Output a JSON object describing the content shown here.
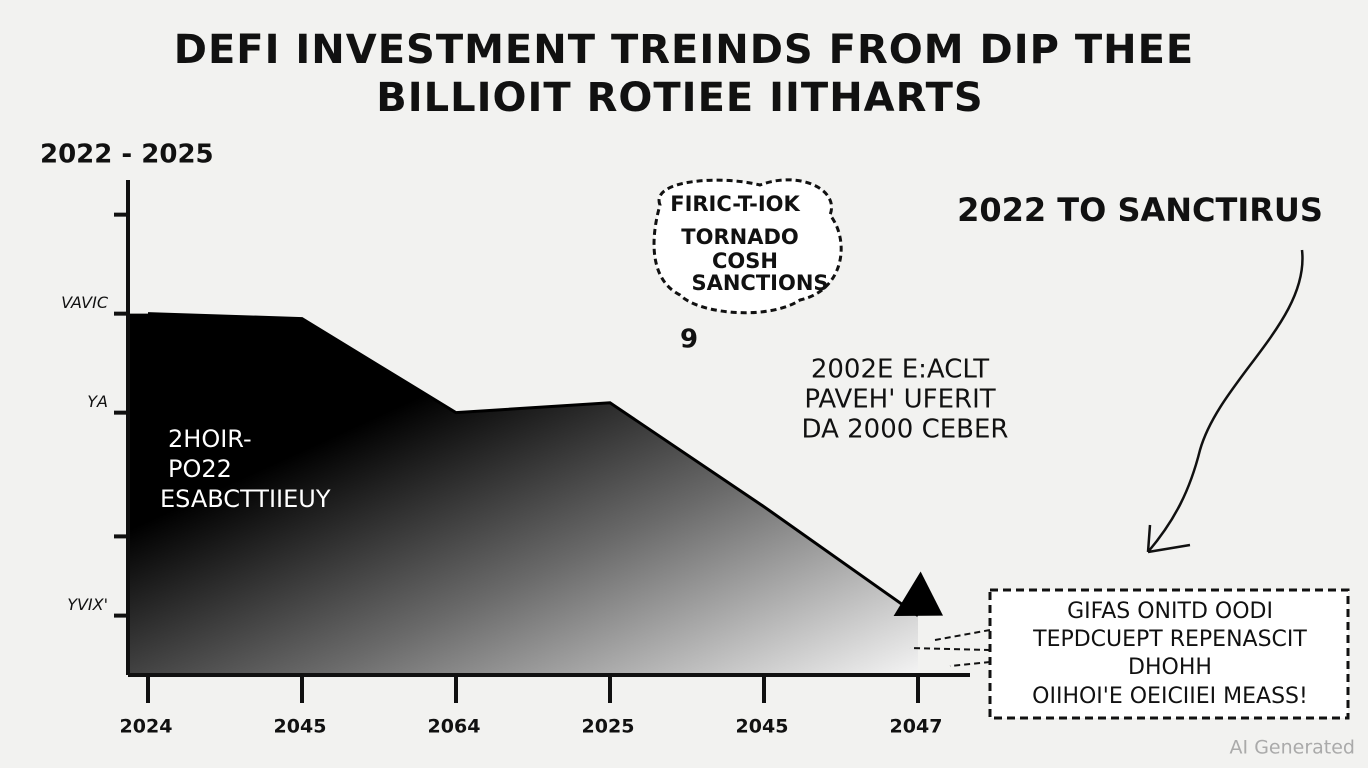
{
  "chart_data": {
    "type": "area",
    "title": [
      "DEFI INVESTMENT TREINDS FROM DIP THEE",
      "BILLIOIT ROTIEE IITHARTS"
    ],
    "subtitle": "2022 - 2025",
    "categories": [
      "2024",
      "2045",
      "2064",
      "2025",
      "2045",
      "2047"
    ],
    "values": [
      73,
      72,
      53,
      55,
      34,
      12
    ],
    "color": "#000000",
    "ylim": [
      0,
      100
    ],
    "yticks": [
      {
        "value": 12,
        "label": "YVIX'"
      },
      {
        "value": 28,
        "label": null
      },
      {
        "value": 53,
        "label": "ΥA"
      },
      {
        "value": 73,
        "label": "VAVIC"
      },
      {
        "value": 93,
        "label": null
      }
    ],
    "annotations": {
      "area_note": [
        "2HOIR-",
        "PO22",
        "ESABCTTIIEUY"
      ],
      "bubble": [
        "FIRIC-T-IOK",
        "TORNADO",
        "COSH",
        "SANCTIONS"
      ],
      "bubble_tail": "9",
      "right_heading": "2022 TO SANCTIRUS",
      "middle_note": [
        "2002E E:ACLT",
        "PAVEH' UFERIT",
        "DA 2000 CEBER"
      ],
      "box": [
        "GIFAS ONITD OODI",
        "TEPDCUEPT REPENASCIT",
        "DHOHH",
        "OIIHOI'E OEICIIEI MEASS!"
      ],
      "watermark": "AI Generated"
    }
  }
}
